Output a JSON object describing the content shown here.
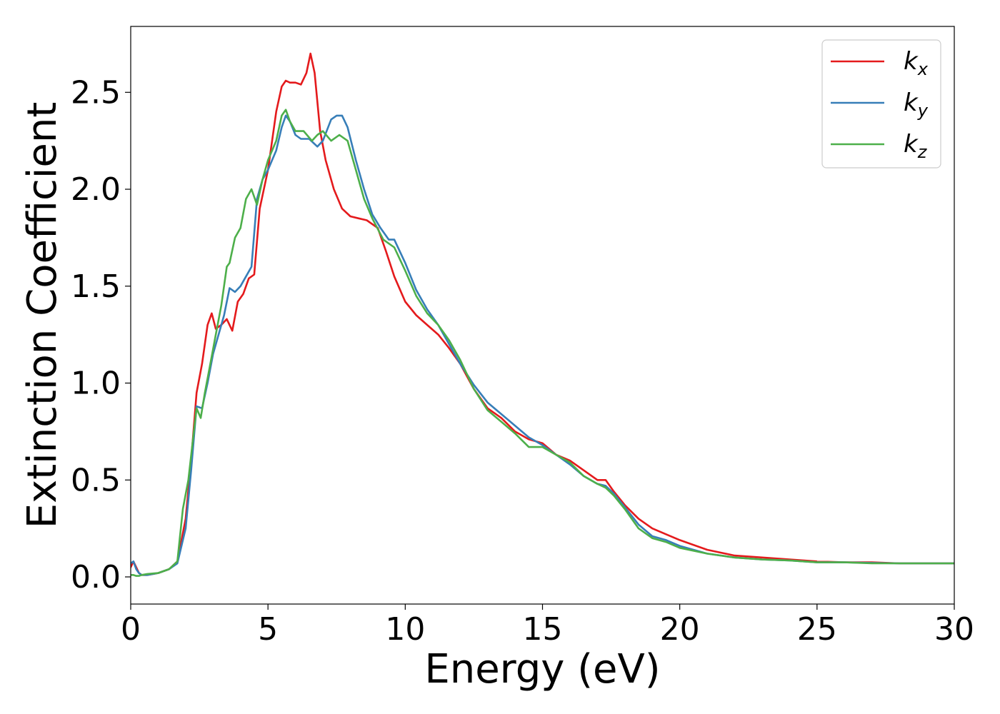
{
  "chart_data": {
    "type": "line",
    "title": "",
    "xlabel": "Energy (eV)",
    "ylabel": "Extinction Coefficient",
    "xlim": [
      0,
      30
    ],
    "ylim": [
      -0.14,
      2.84
    ],
    "xticks": [
      0,
      5,
      10,
      15,
      20,
      25,
      30
    ],
    "xtick_labels": [
      "0",
      "5",
      "10",
      "15",
      "20",
      "25",
      "30"
    ],
    "yticks": [
      0.0,
      0.5,
      1.0,
      1.5,
      2.0,
      2.5
    ],
    "ytick_labels": [
      "0.0",
      "0.5",
      "1.0",
      "1.5",
      "2.0",
      "2.5"
    ],
    "grid": false,
    "legend_position": "top-right",
    "series": [
      {
        "name": "k_x",
        "legend_base": "k",
        "legend_sub": "x",
        "color": "#e41a1c",
        "x": [
          0,
          0.1,
          0.2,
          0.3,
          0.4,
          0.6,
          1.0,
          1.4,
          1.7,
          2.0,
          2.2,
          2.4,
          2.6,
          2.8,
          2.95,
          3.1,
          3.3,
          3.5,
          3.7,
          3.9,
          4.1,
          4.3,
          4.5,
          4.7,
          5.0,
          5.3,
          5.5,
          5.65,
          5.8,
          6.0,
          6.2,
          6.4,
          6.55,
          6.7,
          6.9,
          7.1,
          7.4,
          7.7,
          8.0,
          8.3,
          8.6,
          9.0,
          9.3,
          9.6,
          10.0,
          10.4,
          10.8,
          11.2,
          11.6,
          12.0,
          12.5,
          13.0,
          13.5,
          14.0,
          14.5,
          15.0,
          15.5,
          16.0,
          16.5,
          17.0,
          17.3,
          17.6,
          18.0,
          18.5,
          19.0,
          19.5,
          20.0,
          21.0,
          22.0,
          23.0,
          24.0,
          25.0,
          26.0,
          27.0,
          28.0,
          29.0,
          30.0
        ],
        "y": [
          0.05,
          0.08,
          0.05,
          0.02,
          0.01,
          0.01,
          0.02,
          0.04,
          0.08,
          0.3,
          0.6,
          0.95,
          1.1,
          1.3,
          1.36,
          1.28,
          1.3,
          1.33,
          1.27,
          1.42,
          1.46,
          1.54,
          1.56,
          1.9,
          2.1,
          2.4,
          2.53,
          2.56,
          2.55,
          2.55,
          2.54,
          2.6,
          2.7,
          2.6,
          2.3,
          2.15,
          2.0,
          1.9,
          1.86,
          1.85,
          1.84,
          1.8,
          1.68,
          1.55,
          1.42,
          1.35,
          1.3,
          1.25,
          1.18,
          1.1,
          0.97,
          0.87,
          0.82,
          0.75,
          0.71,
          0.69,
          0.63,
          0.6,
          0.55,
          0.5,
          0.5,
          0.44,
          0.37,
          0.3,
          0.25,
          0.22,
          0.19,
          0.14,
          0.11,
          0.1,
          0.09,
          0.08,
          0.075,
          0.075,
          0.07,
          0.07,
          0.07
        ]
      },
      {
        "name": "k_y",
        "legend_base": "k",
        "legend_sub": "y",
        "color": "#377eb8",
        "x": [
          0,
          0.1,
          0.2,
          0.3,
          0.4,
          0.6,
          1.0,
          1.4,
          1.7,
          2.0,
          2.2,
          2.4,
          2.6,
          2.8,
          3.0,
          3.2,
          3.4,
          3.6,
          3.8,
          4.0,
          4.2,
          4.4,
          4.6,
          4.8,
          5.0,
          5.3,
          5.5,
          5.65,
          5.8,
          6.0,
          6.2,
          6.5,
          6.8,
          7.0,
          7.3,
          7.5,
          7.7,
          7.9,
          8.2,
          8.5,
          8.8,
          9.1,
          9.4,
          9.6,
          10.0,
          10.4,
          10.8,
          11.2,
          11.6,
          12.0,
          12.5,
          13.0,
          13.5,
          14.0,
          14.5,
          15.0,
          15.5,
          16.0,
          16.5,
          17.0,
          17.3,
          17.6,
          18.0,
          18.5,
          19.0,
          19.5,
          20.0,
          21.0,
          22.0,
          23.0,
          24.0,
          25.0,
          26.0,
          27.0,
          28.0,
          29.0,
          30.0
        ],
        "y": [
          0.07,
          0.08,
          0.04,
          0.02,
          0.01,
          0.01,
          0.02,
          0.04,
          0.07,
          0.25,
          0.55,
          0.88,
          0.87,
          1.0,
          1.15,
          1.25,
          1.35,
          1.49,
          1.47,
          1.5,
          1.55,
          1.6,
          1.95,
          2.05,
          2.1,
          2.2,
          2.32,
          2.38,
          2.35,
          2.28,
          2.26,
          2.26,
          2.22,
          2.25,
          2.36,
          2.38,
          2.38,
          2.32,
          2.15,
          2.0,
          1.87,
          1.8,
          1.74,
          1.74,
          1.62,
          1.48,
          1.38,
          1.3,
          1.2,
          1.1,
          0.99,
          0.9,
          0.84,
          0.78,
          0.72,
          0.68,
          0.63,
          0.58,
          0.52,
          0.48,
          0.47,
          0.43,
          0.36,
          0.27,
          0.21,
          0.19,
          0.16,
          0.12,
          0.1,
          0.09,
          0.085,
          0.075,
          0.075,
          0.072,
          0.07,
          0.07,
          0.07
        ]
      },
      {
        "name": "k_z",
        "legend_base": "k",
        "legend_sub": "z",
        "color": "#4daf4a",
        "x": [
          0,
          0.1,
          0.2,
          0.3,
          0.4,
          0.6,
          1.0,
          1.4,
          1.7,
          1.9,
          2.1,
          2.3,
          2.4,
          2.55,
          2.7,
          2.9,
          3.1,
          3.3,
          3.5,
          3.6,
          3.8,
          4.0,
          4.2,
          4.4,
          4.6,
          4.8,
          5.0,
          5.3,
          5.5,
          5.65,
          5.8,
          6.0,
          6.3,
          6.6,
          6.8,
          7.0,
          7.3,
          7.6,
          7.9,
          8.2,
          8.5,
          8.8,
          9.2,
          9.6,
          10.0,
          10.4,
          10.8,
          11.2,
          11.6,
          12.0,
          12.5,
          13.0,
          13.5,
          14.0,
          14.5,
          15.0,
          15.5,
          16.0,
          16.5,
          17.0,
          17.3,
          17.6,
          18.0,
          18.5,
          19.0,
          19.5,
          20.0,
          21.0,
          22.0,
          23.0,
          24.0,
          25.0,
          26.0,
          27.0,
          28.0,
          29.0,
          30.0
        ],
        "y": [
          0.01,
          0.01,
          0.005,
          0.005,
          0.01,
          0.015,
          0.02,
          0.04,
          0.08,
          0.35,
          0.5,
          0.75,
          0.87,
          0.82,
          0.95,
          1.1,
          1.25,
          1.4,
          1.6,
          1.62,
          1.75,
          1.8,
          1.95,
          2.0,
          1.92,
          2.05,
          2.15,
          2.25,
          2.38,
          2.41,
          2.35,
          2.3,
          2.3,
          2.25,
          2.28,
          2.3,
          2.25,
          2.28,
          2.25,
          2.1,
          1.95,
          1.85,
          1.74,
          1.7,
          1.58,
          1.45,
          1.36,
          1.3,
          1.22,
          1.12,
          0.97,
          0.86,
          0.8,
          0.74,
          0.67,
          0.67,
          0.63,
          0.59,
          0.52,
          0.48,
          0.46,
          0.42,
          0.35,
          0.25,
          0.2,
          0.18,
          0.15,
          0.12,
          0.1,
          0.09,
          0.085,
          0.075,
          0.075,
          0.07,
          0.07,
          0.07,
          0.07
        ]
      }
    ]
  }
}
